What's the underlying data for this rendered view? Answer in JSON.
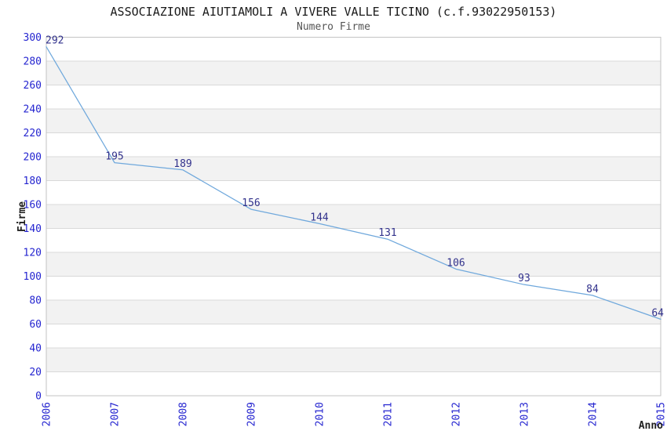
{
  "chart_data": {
    "type": "line",
    "title": "ASSOCIAZIONE AIUTIAMOLI A VIVERE VALLE TICINO (c.f.93022950153)",
    "subtitle": "Numero Firme",
    "xlabel": "Anno",
    "ylabel": "Firme",
    "x": [
      "2006",
      "2007",
      "2008",
      "2009",
      "2010",
      "2011",
      "2012",
      "2013",
      "2014",
      "2015"
    ],
    "values": [
      292,
      195,
      189,
      156,
      144,
      131,
      106,
      93,
      84,
      64
    ],
    "data_labels": [
      "292",
      "195",
      "189",
      "156",
      "144",
      "131",
      "106",
      "93",
      "84",
      "64"
    ],
    "ylim": [
      0,
      300
    ],
    "ytick_step": 20,
    "yticks": [
      0,
      20,
      40,
      60,
      80,
      100,
      120,
      140,
      160,
      180,
      200,
      220,
      240,
      260,
      280,
      300
    ],
    "legend": "none",
    "grid": "horizontal-alternating-bands",
    "markers": "none",
    "colors": {
      "line": "#6fa8dc",
      "tick_label": "#2525d0",
      "data_label": "#32328c",
      "band": "#f2f2f2",
      "gridline": "#d9d9d9",
      "border": "#c3c3c3",
      "title": "#1a1a1a",
      "subtitle": "#555555",
      "axis_title": "#1f1f1f",
      "background": "#ffffff"
    }
  }
}
